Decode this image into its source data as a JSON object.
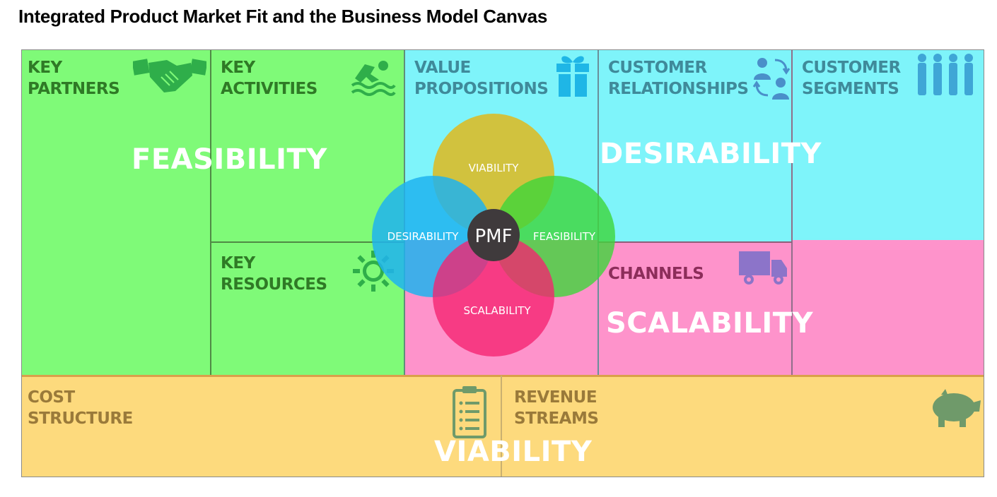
{
  "title": "Integrated Product Market Fit and the Business Model Canvas",
  "blocks": {
    "key_partners": {
      "line1": "KEY",
      "line2": "PARTNERS",
      "icon": "handshake-icon"
    },
    "key_activities": {
      "line1": "KEY",
      "line2": "ACTIVITIES",
      "icon": "swimmer-icon"
    },
    "key_resources": {
      "line1": "KEY",
      "line2": "RESOURCES",
      "icon": "sun-icon"
    },
    "value_propositions": {
      "line1": "VALUE",
      "line2": "PROPOSITIONS",
      "icon": "gift-icon"
    },
    "customer_relationships": {
      "line1": "CUSTOMER",
      "line2": "RELATIONSHIPS",
      "icon": "people-exchange-icon"
    },
    "customer_segments": {
      "line1": "CUSTOMER",
      "line2": "SEGMENTS",
      "icon": "people-group-icon"
    },
    "channels": {
      "line1": "CHANNELS",
      "icon": "truck-icon"
    },
    "cost_structure": {
      "line1": "COST",
      "line2": "STRUCTURE",
      "icon": "clipboard-icon"
    },
    "revenue_streams": {
      "line1": "REVENUE",
      "line2": "STREAMS",
      "icon": "piggy-bank-icon"
    }
  },
  "overlays": {
    "feasibility": "FEASIBILITY",
    "desirability": "DESIRABILITY",
    "scalability": "SCALABILITY",
    "viability": "VIABILITY"
  },
  "venn": {
    "center": "PMF",
    "top": "VIABILITY",
    "left": "DESIRABILITY",
    "right": "FEASIBILITY",
    "bottom": "SCALABILITY"
  },
  "colors": {
    "green": "#7ffa78",
    "blue": "#7ef4fa",
    "pink": "#fe93cb",
    "yellow": "#fdda7d",
    "venn_top": "#d8bd2e",
    "venn_left": "#1fb3ee",
    "venn_right": "#3dd63a",
    "venn_bottom": "#f5236f",
    "venn_center": "#3f3a3c"
  }
}
